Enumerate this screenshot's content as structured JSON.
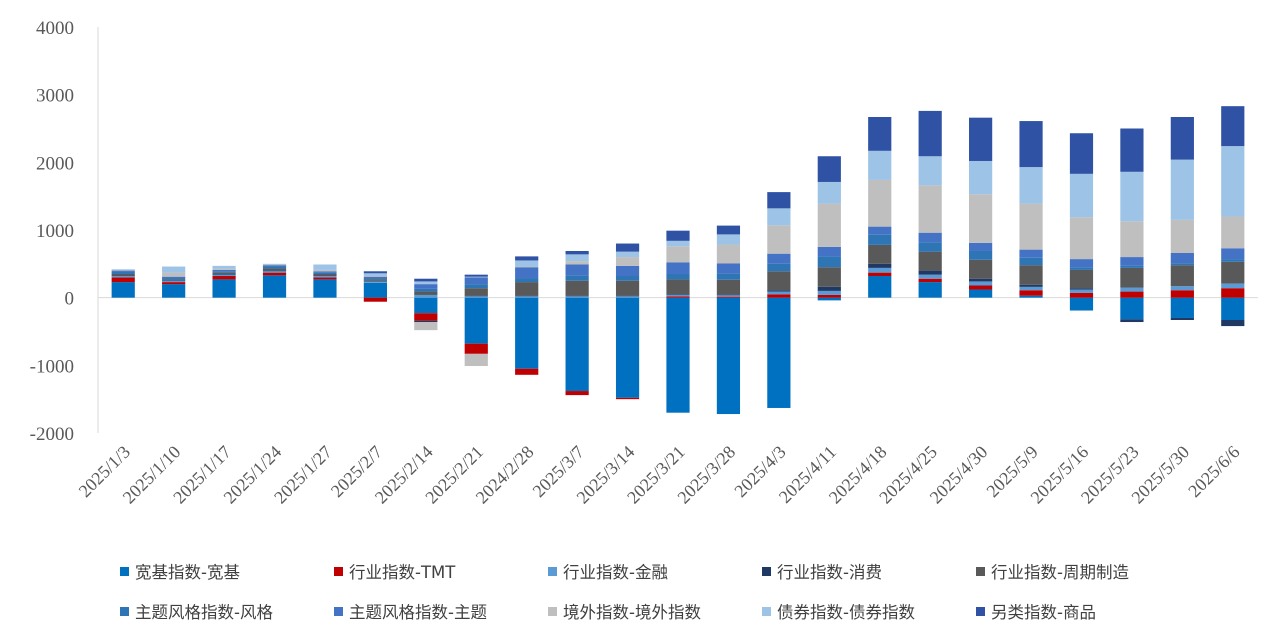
{
  "chart_data": {
    "type": "bar",
    "stacked": true,
    "title": "",
    "xlabel": "",
    "ylabel": "",
    "ylim": [
      -2000,
      4000
    ],
    "yticks": [
      4000,
      3000,
      2000,
      1000,
      0,
      -1000,
      -2000
    ],
    "grid": false,
    "legend_position": "bottom",
    "categories": [
      "2025/1/3",
      "2025/1/10",
      "2025/1/17",
      "2025/1/24",
      "2025/1/27",
      "2025/2/7",
      "2025/2/14",
      "2025/2/21",
      "2024/2/28",
      "2025/3/7",
      "2025/3/14",
      "2025/3/21",
      "2025/3/28",
      "2025/4/3",
      "2025/4/11",
      "2025/4/18",
      "2025/4/25",
      "2025/4/30",
      "2025/5/9",
      "2025/5/16",
      "2025/5/23",
      "2025/5/30",
      "2025/6/6"
    ],
    "series": [
      {
        "name": "宽基指数-宽基",
        "color": "#0070C0",
        "values": [
          230,
          200,
          270,
          330,
          270,
          220,
          -230,
          -680,
          -1050,
          -1380,
          -1480,
          -1700,
          -1720,
          -1630,
          -40,
          320,
          230,
          120,
          30,
          -190,
          -320,
          -300,
          -330
        ]
      },
      {
        "name": "行业指数-TMT",
        "color": "#C00000",
        "values": [
          70,
          30,
          50,
          40,
          30,
          -60,
          -110,
          -150,
          -90,
          -60,
          -20,
          20,
          15,
          50,
          40,
          50,
          50,
          60,
          80,
          70,
          90,
          110,
          140
        ]
      },
      {
        "name": "行业指数-金融",
        "color": "#5B9BD5",
        "values": [
          20,
          20,
          20,
          20,
          20,
          20,
          40,
          20,
          20,
          20,
          20,
          20,
          20,
          40,
          60,
          70,
          60,
          60,
          50,
          50,
          60,
          60,
          70
        ]
      },
      {
        "name": "行业指数-消费",
        "color": "#1F3864",
        "values": [
          10,
          10,
          10,
          10,
          10,
          10,
          -20,
          10,
          10,
          10,
          10,
          10,
          10,
          20,
          60,
          60,
          60,
          40,
          30,
          20,
          -40,
          -30,
          -90
        ]
      },
      {
        "name": "行业指数-周期制造",
        "color": "#595959",
        "values": [
          20,
          10,
          20,
          30,
          20,
          20,
          50,
          110,
          200,
          220,
          220,
          220,
          220,
          280,
          290,
          280,
          280,
          280,
          290,
          270,
          290,
          310,
          320
        ]
      },
      {
        "name": "主题风格指数-风格",
        "color": "#2E75B6",
        "values": [
          30,
          20,
          20,
          30,
          20,
          20,
          40,
          60,
          60,
          80,
          70,
          80,
          90,
          110,
          160,
          150,
          140,
          130,
          110,
          40,
          30,
          30,
          40
        ]
      },
      {
        "name": "主题风格指数-主题",
        "color": "#4472C4",
        "values": [
          20,
          20,
          20,
          20,
          20,
          20,
          70,
          100,
          160,
          160,
          150,
          170,
          150,
          150,
          140,
          120,
          140,
          120,
          120,
          120,
          130,
          150,
          160
        ]
      },
      {
        "name": "境外指数-境外指数",
        "color": "#BFBFBF",
        "values": [
          10,
          60,
          20,
          10,
          20,
          10,
          -120,
          -180,
          10,
          50,
          130,
          240,
          280,
          420,
          640,
          690,
          700,
          720,
          680,
          620,
          530,
          490,
          470
        ]
      },
      {
        "name": "债券指数-债券指数",
        "color": "#9DC3E6",
        "values": [
          10,
          90,
          40,
          10,
          80,
          40,
          40,
          10,
          90,
          100,
          80,
          80,
          150,
          250,
          320,
          430,
          430,
          490,
          540,
          640,
          730,
          890,
          1040
        ]
      },
      {
        "name": "另类指数-商品",
        "color": "#2F52A4",
        "values": [
          0,
          0,
          0,
          0,
          0,
          30,
          40,
          30,
          60,
          50,
          120,
          150,
          130,
          240,
          380,
          500,
          670,
          640,
          680,
          600,
          640,
          630,
          590
        ]
      }
    ]
  }
}
